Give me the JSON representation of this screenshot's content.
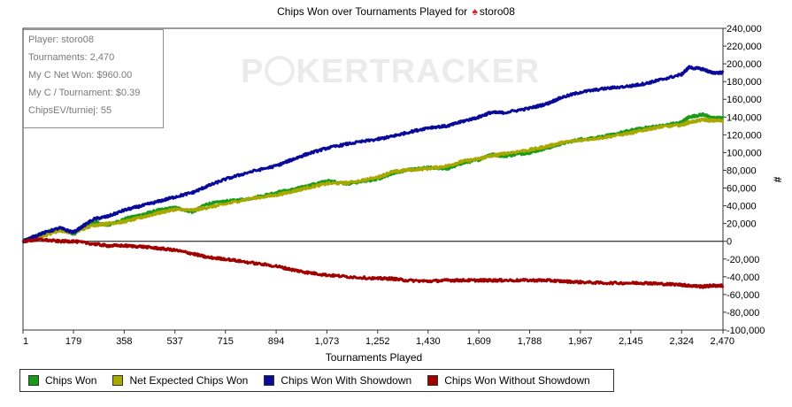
{
  "title_prefix": "Chips Won over Tournaments Played for",
  "player_name": "storo08",
  "stats": [
    "Player: storo08",
    "Tournaments: 2,470",
    "My C Net Won: $960.00",
    "My C / Tournament: $0.39",
    "ChipsEV/turniej: 55"
  ],
  "watermark": {
    "part1": "P",
    "part2": "KER",
    "part3": "TRACKER"
  },
  "chart_data": {
    "type": "line",
    "title": "Chips Won over Tournaments Played for storo08",
    "xlabel": "Tournaments Played",
    "ylabel": "#",
    "xlim": [
      1,
      2470
    ],
    "ylim": [
      -100000,
      240000
    ],
    "x_ticks": [
      1,
      179,
      358,
      537,
      715,
      894,
      1073,
      1252,
      1430,
      1609,
      1788,
      1967,
      2145,
      2324,
      2470
    ],
    "x_tick_labels": [
      "1",
      "179",
      "358",
      "537",
      "715",
      "894",
      "1,073",
      "1,252",
      "1,430",
      "1,609",
      "1,788",
      "1,967",
      "2,145",
      "2,324",
      "2,470"
    ],
    "y_ticks": [
      -100000,
      -80000,
      -60000,
      -40000,
      -20000,
      0,
      20000,
      40000,
      60000,
      80000,
      100000,
      120000,
      140000,
      160000,
      180000,
      200000,
      220000,
      240000
    ],
    "y_tick_labels": [
      "-100,000",
      "-80,000",
      "-60,000",
      "-40,000",
      "-20,000",
      "0",
      "20,000",
      "40,000",
      "60,000",
      "80,000",
      "100,000",
      "120,000",
      "140,000",
      "160,000",
      "180,000",
      "200,000",
      "220,000",
      "240,000"
    ],
    "grid": false,
    "legend_position": "bottom-left",
    "x": [
      1,
      60,
      130,
      179,
      250,
      300,
      358,
      420,
      480,
      537,
      600,
      650,
      715,
      800,
      894,
      950,
      1000,
      1073,
      1150,
      1252,
      1300,
      1350,
      1430,
      1500,
      1550,
      1609,
      1650,
      1700,
      1788,
      1850,
      1900,
      1967,
      2050,
      2145,
      2200,
      2250,
      2324,
      2350,
      2400,
      2430,
      2470
    ],
    "series": [
      {
        "name": "Chips Won",
        "color": "#1a9a1a",
        "values": [
          0,
          8000,
          15000,
          8000,
          22000,
          18000,
          25000,
          30000,
          35000,
          38000,
          33000,
          42000,
          45000,
          48000,
          55000,
          58000,
          62000,
          68000,
          65000,
          70000,
          76000,
          80000,
          83000,
          82000,
          88000,
          92000,
          98000,
          96000,
          100000,
          105000,
          110000,
          115000,
          118000,
          125000,
          128000,
          130000,
          134000,
          140000,
          143000,
          139000,
          139000
        ]
      },
      {
        "name": "Net Expected Chips Won",
        "color": "#a8a800",
        "values": [
          0,
          5000,
          12000,
          10000,
          18000,
          20000,
          22000,
          27000,
          32000,
          36000,
          35000,
          38000,
          42000,
          48000,
          52000,
          56000,
          60000,
          65000,
          66000,
          72000,
          78000,
          80000,
          82000,
          85000,
          90000,
          93000,
          96000,
          99000,
          103000,
          107000,
          111000,
          114000,
          117000,
          122000,
          126000,
          129000,
          131000,
          134000,
          137000,
          136000,
          136000
        ]
      },
      {
        "name": "Chips Won With Showdown",
        "color": "#0a0a9a",
        "values": [
          0,
          8000,
          15000,
          10000,
          25000,
          28000,
          35000,
          40000,
          45000,
          50000,
          55000,
          62000,
          70000,
          78000,
          85000,
          92000,
          98000,
          105000,
          110000,
          115000,
          118000,
          122000,
          128000,
          130000,
          135000,
          140000,
          145000,
          145000,
          150000,
          155000,
          162000,
          168000,
          172000,
          175000,
          178000,
          182000,
          188000,
          196000,
          194000,
          190000,
          190000
        ]
      },
      {
        "name": "Chips Won Without Showdown",
        "color": "#a00000",
        "values": [
          0,
          2000,
          0,
          0,
          -3000,
          -5000,
          -5000,
          -6000,
          -8000,
          -10000,
          -14000,
          -18000,
          -20000,
          -24000,
          -28000,
          -32000,
          -35000,
          -38000,
          -40000,
          -42000,
          -42000,
          -44000,
          -45000,
          -44000,
          -44000,
          -44000,
          -44000,
          -44000,
          -44000,
          -44000,
          -45000,
          -46000,
          -47000,
          -47000,
          -47000,
          -48000,
          -49000,
          -50000,
          -51000,
          -50000,
          -50000
        ]
      }
    ]
  }
}
